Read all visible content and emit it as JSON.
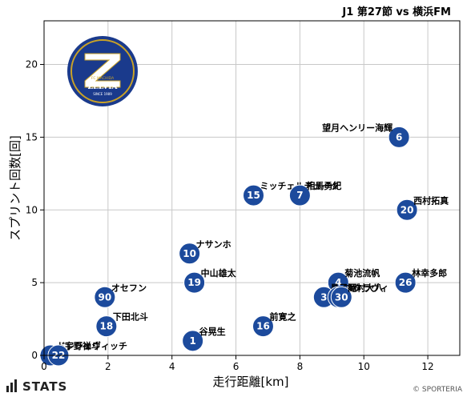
{
  "chart_data": {
    "type": "scatter",
    "title": "J1 第27節 vs 横浜FM",
    "xlabel": "走行距離[km]",
    "ylabel": "スプリント回数[回]",
    "xlim": [
      0,
      13
    ],
    "ylim": [
      0,
      23
    ],
    "xticks": [
      0,
      2,
      4,
      6,
      8,
      10,
      12
    ],
    "yticks": [
      0,
      5,
      10,
      15,
      20
    ],
    "grid": true,
    "points": [
      {
        "number": "6",
        "name": "望月ヘンリー海輝",
        "x": 11.1,
        "y": 15
      },
      {
        "number": "15",
        "name": "ミッチェルデューク",
        "x": 6.55,
        "y": 11
      },
      {
        "number": "7",
        "name": "相馬勇紀",
        "x": 8.0,
        "y": 11
      },
      {
        "number": "20",
        "name": "西村拓真",
        "x": 11.35,
        "y": 10
      },
      {
        "number": "10",
        "name": "ナサンホ",
        "x": 4.55,
        "y": 7
      },
      {
        "number": "19",
        "name": "中山雄太",
        "x": 4.7,
        "y": 5
      },
      {
        "number": "4",
        "name": "菊池流帆",
        "x": 9.2,
        "y": 5
      },
      {
        "number": "26",
        "name": "林幸多郎",
        "x": 11.3,
        "y": 5
      },
      {
        "number": "90",
        "name": "オセフン",
        "x": 1.9,
        "y": 4
      },
      {
        "number": "3",
        "name": "昌子源",
        "x": 8.75,
        "y": 4
      },
      {
        "number": "50",
        "name": "ネタラヴィ",
        "x": 9.2,
        "y": 4
      },
      {
        "number": "30",
        "name": "岡村大八",
        "x": 9.3,
        "y": 4
      },
      {
        "number": "18",
        "name": "下田北斗",
        "x": 1.95,
        "y": 2
      },
      {
        "number": "16",
        "name": "前寛之",
        "x": 6.85,
        "y": 2
      },
      {
        "number": "1",
        "name": "谷晃生",
        "x": 4.65,
        "y": 1
      },
      {
        "number": "5",
        "name": "ドレシェヴィッチ",
        "x": 0.2,
        "y": 0
      },
      {
        "number": "22",
        "name": "宇野禅斗",
        "x": 0.45,
        "y": 0
      }
    ]
  },
  "logo": {
    "text_top": "FC MACHIDA",
    "text_main": "ZELVIA",
    "text_sub": "SINCE 1989"
  },
  "footer": {
    "brand": "STATS",
    "credit": "© SPORTERIA"
  },
  "colors": {
    "marker": "#1c4a9c",
    "grid": "#c8c8c8",
    "logo_navy": "#1a3a8c",
    "logo_gold": "#c9a227"
  }
}
